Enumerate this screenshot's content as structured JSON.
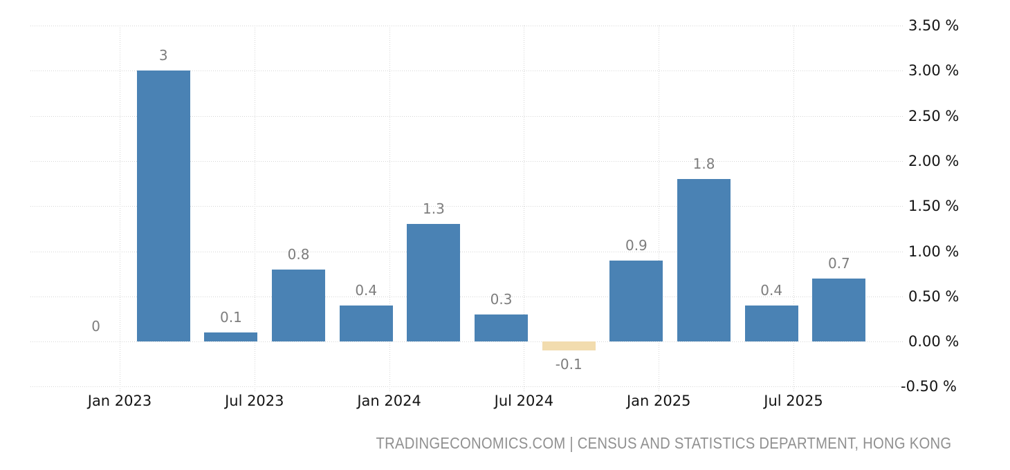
{
  "chart_data": {
    "type": "bar",
    "title": "",
    "x_tick_labels": [
      "Jan 2023",
      "Jul 2023",
      "Jan 2024",
      "Jul 2024",
      "Jan 2025",
      "Jul 2025"
    ],
    "values": [
      0,
      3,
      0.1,
      0.8,
      0.4,
      1.3,
      0.3,
      -0.1,
      0.9,
      1.8,
      0.4,
      0.7
    ],
    "bar_value_labels": [
      "0",
      "3",
      "0.1",
      "0.8",
      "0.4",
      "1.3",
      "0.3",
      "-0.1",
      "0.9",
      "1.8",
      "0.4",
      "0.7"
    ],
    "y_tick_labels": [
      "3.50 %",
      "3.00 %",
      "2.50 %",
      "2.00 %",
      "1.50 %",
      "1.00 %",
      "0.50 %",
      "0.00 %",
      "-0.50 %"
    ],
    "ylim": [
      -0.5,
      3.5
    ],
    "y_step": 0.5,
    "grid": "dotted",
    "legend_position": "none",
    "colors": {
      "bar_positive": "#4a82b4",
      "bar_negative": "#f2dcae",
      "gridline": "#d5d5d5",
      "value_label": "#7d7d7d",
      "axis_label": "#141414",
      "footer_text": "#909090",
      "background": "#ffffff"
    }
  },
  "footer": {
    "text": "TRADINGECONOMICS.COM | CENSUS AND STATISTICS DEPARTMENT, HONG KONG"
  }
}
